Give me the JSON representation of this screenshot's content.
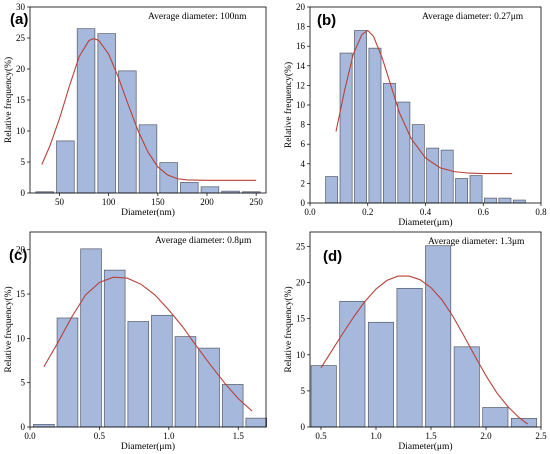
{
  "style": {
    "bar_color": "#a7b8dd",
    "fit_color": "#b8413a"
  },
  "chart_data": [
    {
      "type": "bar",
      "panel_label": "(a)",
      "annotation": "Average diameter: 100nm",
      "xlabel": "Diameter(nm)",
      "ylabel": "Relative frequency(%)",
      "xlim": [
        20,
        260
      ],
      "ylim": [
        0,
        30
      ],
      "xticks": [
        50,
        100,
        150,
        200,
        250
      ],
      "xtick_labels": [
        "50",
        "100",
        "150",
        "200",
        "250"
      ],
      "yticks": [
        0,
        5,
        10,
        15,
        20,
        25,
        30
      ],
      "ytick_labels": [
        "0",
        "5",
        "10",
        "15",
        "20",
        "25",
        "30"
      ],
      "bar_width": 18,
      "x": [
        35,
        56,
        77,
        98,
        119,
        140,
        161,
        182,
        203,
        224,
        245
      ],
      "values": [
        0.2,
        8.4,
        26.5,
        25.7,
        19.7,
        11.0,
        4.9,
        1.7,
        1.0,
        0.3,
        0.2
      ],
      "fit": {
        "x": [
          32,
          40,
          50,
          60,
          70,
          80,
          85,
          90,
          100,
          110,
          120,
          130,
          140,
          150,
          160,
          170,
          180,
          200,
          220,
          250
        ],
        "y": [
          4.6,
          7.5,
          12.0,
          17.2,
          22.0,
          24.6,
          24.9,
          24.6,
          22.4,
          18.6,
          14.2,
          10.0,
          6.6,
          4.2,
          2.9,
          2.3,
          2.1,
          2.05,
          2.05,
          2.05
        ]
      }
    },
    {
      "type": "bar",
      "panel_label": "(b)",
      "annotation": "Average diameter: 0.27μm",
      "xlabel": "Diameter(μm)",
      "ylabel": "Relative frequency(%)",
      "xlim": [
        0,
        0.8
      ],
      "ylim": [
        0,
        20
      ],
      "xticks": [
        0.0,
        0.2,
        0.4,
        0.6,
        0.8
      ],
      "xtick_labels": [
        "0.0",
        "0.2",
        "0.4",
        "0.6",
        "0.8"
      ],
      "yticks": [
        0,
        2,
        4,
        6,
        8,
        10,
        12,
        14,
        16,
        18,
        20
      ],
      "ytick_labels": [
        "0",
        "2",
        "4",
        "6",
        "8",
        "10",
        "12",
        "14",
        "16",
        "18",
        "20"
      ],
      "bar_width": 0.042,
      "x": [
        0.075,
        0.125,
        0.175,
        0.225,
        0.275,
        0.325,
        0.375,
        0.425,
        0.475,
        0.525,
        0.575,
        0.625,
        0.675,
        0.725
      ],
      "values": [
        2.7,
        15.3,
        17.6,
        15.8,
        12.2,
        10.3,
        8.0,
        5.6,
        5.4,
        2.5,
        2.8,
        0.5,
        0.5,
        0.3
      ],
      "fit": {
        "x": [
          0.09,
          0.12,
          0.15,
          0.18,
          0.2,
          0.22,
          0.25,
          0.28,
          0.31,
          0.35,
          0.4,
          0.45,
          0.5,
          0.55,
          0.6,
          0.65,
          0.7
        ],
        "y": [
          7.3,
          11.5,
          15.2,
          17.2,
          17.6,
          17.0,
          14.8,
          12.0,
          9.2,
          6.6,
          4.6,
          3.6,
          3.2,
          3.05,
          3.0,
          3.0,
          3.0
        ]
      }
    },
    {
      "type": "bar",
      "panel_label": "(c)",
      "annotation": "Average diameter: 0.8μm",
      "xlabel": "Diameter(μm)",
      "ylabel": "Relative frequency(%)",
      "xlim": [
        0,
        1.7
      ],
      "ylim": [
        0,
        22
      ],
      "xticks": [
        0.0,
        0.5,
        1.0,
        1.5
      ],
      "xtick_labels": [
        "0.0",
        "0.5",
        "1.0",
        "1.5"
      ],
      "yticks": [
        0,
        5,
        10,
        15,
        20
      ],
      "ytick_labels": [
        "0",
        "5",
        "10",
        "15",
        "20"
      ],
      "bar_width": 0.15,
      "x": [
        0.1,
        0.27,
        0.44,
        0.61,
        0.78,
        0.95,
        1.12,
        1.29,
        1.46,
        1.63
      ],
      "values": [
        0.3,
        12.3,
        20.1,
        17.7,
        11.9,
        12.6,
        10.2,
        8.9,
        4.8,
        1.0
      ],
      "fit": {
        "x": [
          0.1,
          0.2,
          0.3,
          0.4,
          0.5,
          0.6,
          0.7,
          0.8,
          0.9,
          1.0,
          1.1,
          1.2,
          1.3,
          1.4,
          1.5,
          1.6
        ],
        "y": [
          6.8,
          9.5,
          12.4,
          14.9,
          16.3,
          16.9,
          16.8,
          16.1,
          14.9,
          13.2,
          11.3,
          9.1,
          7.0,
          5.0,
          3.2,
          1.8
        ]
      }
    },
    {
      "type": "bar",
      "panel_label": "(d)",
      "annotation": "Average diameter: 1.3μm",
      "xlabel": "Diameter(μm)",
      "ylabel": "Relative frequency(%)",
      "xlim": [
        0.4,
        2.5
      ],
      "ylim": [
        0,
        27
      ],
      "xticks": [
        0.5,
        1.0,
        1.5,
        2.0,
        2.5
      ],
      "xtick_labels": [
        "0.5",
        "1.0",
        "1.5",
        "2.0",
        "2.5"
      ],
      "yticks": [
        0,
        5,
        10,
        15,
        20,
        25
      ],
      "ytick_labels": [
        "0",
        "5",
        "10",
        "15",
        "20",
        "25"
      ],
      "bar_width": 0.23,
      "x": [
        0.525,
        0.785,
        1.045,
        1.305,
        1.565,
        1.825,
        2.085,
        2.345
      ],
      "values": [
        8.5,
        17.4,
        14.5,
        19.2,
        25.1,
        11.1,
        2.7,
        1.2
      ],
      "fit": {
        "x": [
          0.5,
          0.6,
          0.7,
          0.8,
          0.9,
          1.0,
          1.1,
          1.2,
          1.3,
          1.4,
          1.5,
          1.6,
          1.7,
          1.8,
          1.9,
          2.0,
          2.1,
          2.2,
          2.3,
          2.38
        ],
        "y": [
          8.2,
          10.6,
          13.0,
          15.3,
          17.4,
          19.1,
          20.3,
          20.9,
          20.9,
          20.4,
          19.3,
          17.6,
          15.3,
          12.6,
          9.8,
          7.1,
          4.7,
          2.8,
          1.3,
          0.4
        ]
      }
    }
  ]
}
